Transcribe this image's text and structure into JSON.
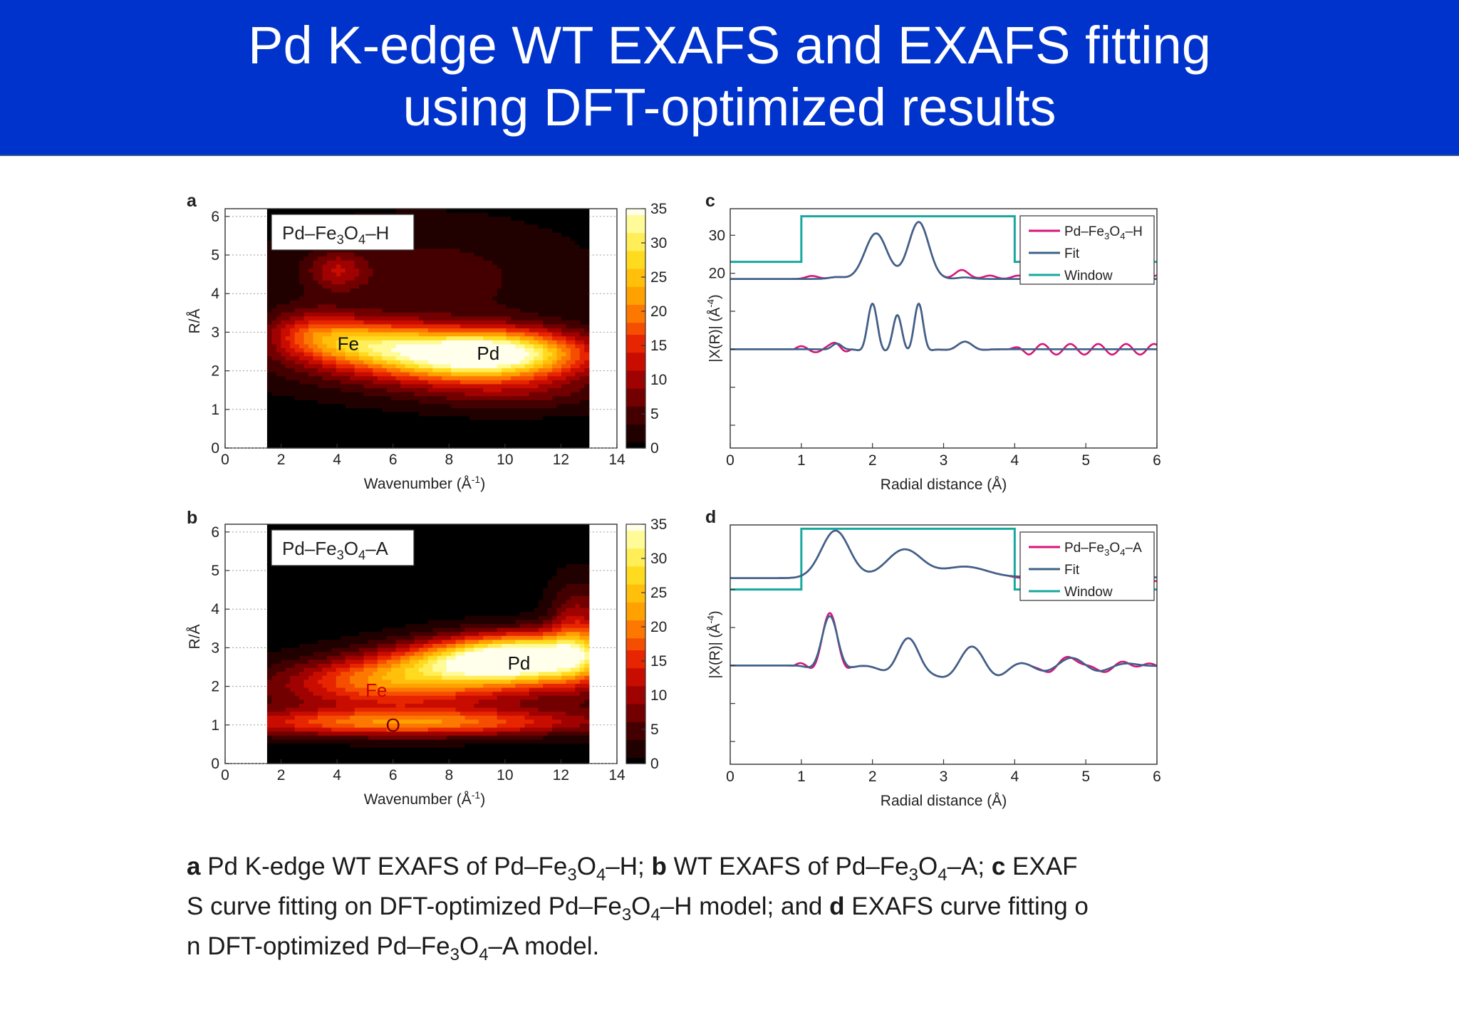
{
  "slide": {
    "title_line1": "Pd K-edge WT EXAFS and EXAFS fitting",
    "title_line2": "using DFT-optimized results"
  },
  "caption": [
    {
      "t": "a",
      "b": true
    },
    {
      "t": " Pd K-edge WT EXAFS of Pd–Fe"
    },
    {
      "t": "3",
      "sub": true
    },
    {
      "t": "O"
    },
    {
      "t": "4",
      "sub": true
    },
    {
      "t": "–H; "
    },
    {
      "t": "b",
      "b": true
    },
    {
      "t": " WT EXAFS of Pd–Fe"
    },
    {
      "t": "3",
      "sub": true
    },
    {
      "t": "O"
    },
    {
      "t": "4",
      "sub": true
    },
    {
      "t": "–A; "
    },
    {
      "t": "c",
      "b": true
    },
    {
      "t": " EXAF",
      "br": true
    },
    {
      "t": "S curve fitting on DFT-optimized Pd–Fe"
    },
    {
      "t": "3",
      "sub": true
    },
    {
      "t": "O"
    },
    {
      "t": "4",
      "sub": true
    },
    {
      "t": "–H model; and "
    },
    {
      "t": "d",
      "b": true
    },
    {
      "t": " EXAFS curve fitting o",
      "br": true
    },
    {
      "t": "n DFT-optimized Pd–Fe"
    },
    {
      "t": "3",
      "sub": true
    },
    {
      "t": "O"
    },
    {
      "t": "4",
      "sub": true
    },
    {
      "t": "–A model."
    }
  ],
  "colors": {
    "title_bg": "#0033cc",
    "sample": "#d6157a",
    "fit": "#3b6388",
    "window": "#17a89e"
  },
  "chart_data": [
    {
      "panel": "a",
      "type": "heatmap",
      "inset_label": {
        "pre": "Pd–Fe",
        "sub1": "3",
        "mid": "O",
        "sub2": "4",
        "post": "–H"
      },
      "xlabel": "Wavenumber (Å",
      "xlabel_sup": "-1",
      "xlabel_post": ")",
      "ylabel": "R/Å",
      "xlim": [
        0,
        14
      ],
      "ylim": [
        0,
        6.2
      ],
      "xticks": [
        0,
        2,
        4,
        6,
        8,
        10,
        12,
        14
      ],
      "yticks": [
        0,
        1,
        2,
        3,
        4,
        5,
        6
      ],
      "data_k_range": [
        1.5,
        13
      ],
      "colorbar_ticks": [
        0,
        5,
        10,
        15,
        20,
        25,
        30,
        35
      ],
      "peaks": [
        {
          "k": 5.0,
          "r": 2.75,
          "w": 2.2,
          "h": 0.55,
          "v": 16
        },
        {
          "k": 9.2,
          "r": 2.45,
          "w": 3.4,
          "h": 0.6,
          "v": 34
        },
        {
          "k": 7.5,
          "r": 2.2,
          "w": 5.5,
          "h": 0.8,
          "v": 10
        },
        {
          "k": 3.0,
          "r": 3.0,
          "w": 1.6,
          "h": 0.6,
          "v": 10
        },
        {
          "k": 7.0,
          "r": 4.4,
          "w": 5.5,
          "h": 1.5,
          "v": 5
        },
        {
          "k": 4.0,
          "r": 4.6,
          "w": 1.0,
          "h": 0.5,
          "v": 8
        },
        {
          "k": 10.5,
          "r": 1.4,
          "w": 3.5,
          "h": 0.5,
          "v": 5
        }
      ],
      "features": [
        {
          "label": "Fe",
          "k": 4.4,
          "r": 2.7
        },
        {
          "label": "Pd",
          "k": 9.4,
          "r": 2.45
        }
      ]
    },
    {
      "panel": "b",
      "type": "heatmap",
      "inset_label": {
        "pre": "Pd–Fe",
        "sub1": "3",
        "mid": "O",
        "sub2": "4",
        "post": "–A"
      },
      "xlabel": "Wavenumber (Å",
      "xlabel_sup": "-1",
      "xlabel_post": ")",
      "ylabel": "R/Å",
      "xlim": [
        0,
        14
      ],
      "ylim": [
        0,
        6.2
      ],
      "xticks": [
        0,
        2,
        4,
        6,
        8,
        10,
        12,
        14
      ],
      "yticks": [
        0,
        1,
        2,
        3,
        4,
        5,
        6
      ],
      "data_k_range": [
        1.5,
        13
      ],
      "colorbar_ticks": [
        0,
        5,
        10,
        15,
        20,
        25,
        30,
        35
      ],
      "peaks": [
        {
          "k": 11.0,
          "r": 2.75,
          "w": 2.8,
          "h": 0.6,
          "v": 34
        },
        {
          "k": 8.5,
          "r": 2.6,
          "w": 3.0,
          "h": 0.6,
          "v": 18
        },
        {
          "k": 5.5,
          "r": 2.2,
          "w": 3.2,
          "h": 0.6,
          "v": 13
        },
        {
          "k": 6.5,
          "r": 1.05,
          "w": 6.5,
          "h": 0.35,
          "v": 19
        },
        {
          "k": 12.6,
          "r": 3.4,
          "w": 1.0,
          "h": 1.2,
          "v": 12
        },
        {
          "k": 7.0,
          "r": 1.8,
          "w": 7.0,
          "h": 0.7,
          "v": 8
        }
      ],
      "features": [
        {
          "label": "Pd",
          "k": 10.5,
          "r": 2.6
        },
        {
          "label": "Fe",
          "k": 5.4,
          "r": 1.9
        },
        {
          "label": "O",
          "k": 6.0,
          "r": 1.0
        }
      ]
    },
    {
      "panel": "c",
      "type": "line",
      "xlabel": "Radial distance (Å)",
      "ylabel": "|X(R)| (Å",
      "ylabel_sup": "-4",
      "ylabel_post": ")",
      "xlim": [
        0,
        6
      ],
      "xticks": [
        0,
        1,
        2,
        3,
        4,
        5,
        6
      ],
      "yticks_labeled": [
        30,
        20
      ],
      "yticks_unlabeled": [
        10,
        0,
        -10,
        -20
      ],
      "ylim": [
        -26,
        37
      ],
      "legend": {
        "loc": "top-right",
        "entries": [
          {
            "series": "sample",
            "pre": "Pd–Fe",
            "sub1": "3",
            "mid": "O",
            "sub2": "4",
            "post": "–H"
          },
          {
            "series": "fit",
            "text": "Fit"
          },
          {
            "series": "window",
            "text": "Window"
          }
        ]
      },
      "window": {
        "start": 1.0,
        "end": 4.0,
        "low": 23,
        "high": 35
      },
      "magnitude": {
        "baseline": 18.5,
        "fit_peaks": [
          [
            2.05,
            12.0,
            0.22
          ],
          [
            2.65,
            15.0,
            0.2
          ],
          [
            1.5,
            0.5,
            0.15
          ],
          [
            3.3,
            0.4,
            0.15
          ]
        ],
        "sample_extra_peaks": [
          [
            1.15,
            0.8,
            0.12
          ],
          [
            3.25,
            2.0,
            0.13
          ],
          [
            3.65,
            0.9,
            0.12
          ],
          [
            4.05,
            0.9,
            0.12
          ],
          [
            4.45,
            0.9,
            0.12
          ],
          [
            4.85,
            0.9,
            0.12
          ],
          [
            5.25,
            0.9,
            0.12
          ],
          [
            5.65,
            0.9,
            0.12
          ],
          [
            6.0,
            0.9,
            0.12
          ]
        ]
      },
      "imaginary": {
        "baseline": 0,
        "fit_components": [
          [
            2.0,
            12.0,
            0.12,
            9.5
          ],
          [
            2.35,
            9.0,
            0.11,
            10.0
          ],
          [
            2.65,
            12.0,
            0.11,
            10.0
          ],
          [
            1.5,
            1.5,
            0.12,
            9.5
          ],
          [
            3.3,
            2.0,
            0.2,
            7.5
          ]
        ],
        "sample_ripple": {
          "start": 3.9,
          "freq": 2.55,
          "amp": 1.4
        }
      }
    },
    {
      "panel": "d",
      "type": "line",
      "xlabel": "Radial distance (Å)",
      "ylabel": "|X(R)| (Å",
      "ylabel_sup": "-4",
      "ylabel_post": ")",
      "xlim": [
        0,
        6
      ],
      "xticks": [
        0,
        1,
        2,
        3,
        4,
        5,
        6
      ],
      "yticks_labeled": [],
      "yticks_unlabeled": [
        20,
        10,
        0,
        -10,
        -20
      ],
      "ylim": [
        -26,
        37
      ],
      "legend": {
        "loc": "top-right",
        "entries": [
          {
            "series": "sample",
            "pre": "Pd–Fe",
            "sub1": "3",
            "mid": "O",
            "sub2": "4",
            "post": "–A"
          },
          {
            "series": "fit",
            "text": "Fit"
          },
          {
            "series": "window",
            "text": "Window"
          }
        ]
      },
      "window": {
        "start": 1.0,
        "end": 4.0,
        "low": 20,
        "high": 36
      },
      "magnitude": {
        "baseline": 23,
        "fit_peaks": [
          [
            1.48,
            12.5,
            0.28
          ],
          [
            2.45,
            7.5,
            0.35
          ],
          [
            3.3,
            3.0,
            0.45
          ],
          [
            5.0,
            1.0,
            0.8
          ]
        ],
        "sample_extra_peaks": [
          [
            4.4,
            0.8,
            0.15
          ],
          [
            4.85,
            0.5,
            0.15
          ],
          [
            5.3,
            0.3,
            0.15
          ]
        ]
      },
      "imaginary": {
        "baseline": 0,
        "fit_components": [
          [
            1.4,
            13.0,
            0.2,
            6.3
          ],
          [
            2.5,
            7.0,
            0.3,
            6.6
          ],
          [
            3.4,
            5.0,
            0.5,
            7.2
          ],
          [
            4.8,
            2.0,
            0.7,
            7.5
          ]
        ],
        "sample_ripple": {
          "start": 4.2,
          "freq": 2.5,
          "amp": 0.6
        }
      }
    }
  ]
}
